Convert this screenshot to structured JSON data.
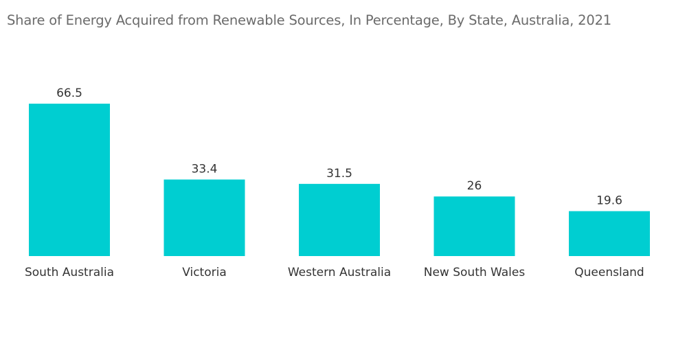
{
  "chart_data": {
    "type": "bar",
    "title": "Share of Energy Acquired from Renewable Sources, In Percentage, By State, Australia, 2021",
    "categories": [
      "South Australia",
      "Victoria",
      "Western Australia",
      "New South Wales",
      "Queensland"
    ],
    "values": [
      66.5,
      33.4,
      31.5,
      26,
      19.6
    ],
    "value_labels": [
      "66.5",
      "33.4",
      "31.5",
      "26",
      "19.6"
    ],
    "xlabel": "",
    "ylabel": "",
    "ylim": [
      0,
      66.5
    ],
    "grid": false,
    "legend": "none",
    "bar_color": "#00CED1"
  }
}
